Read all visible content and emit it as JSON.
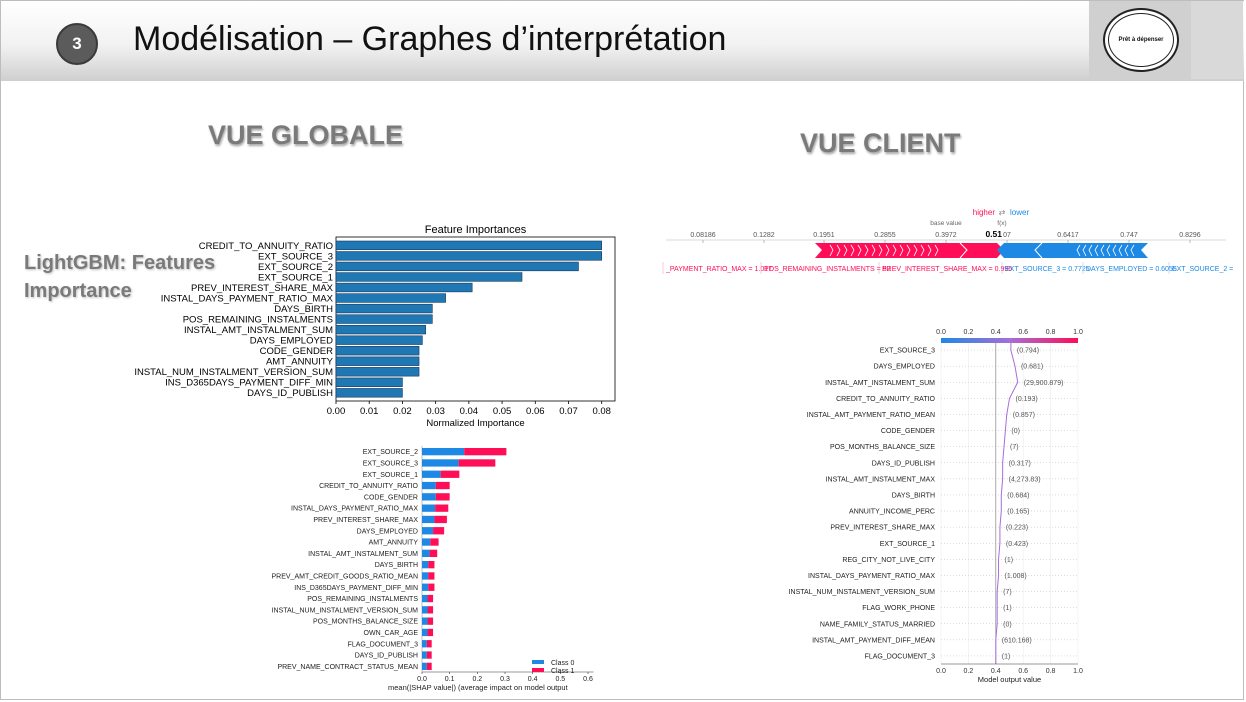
{
  "header": {
    "badge": "3",
    "title": "Modélisation – Graphes d’interprétation",
    "logo_text": "Prêt à dépenser"
  },
  "vue_globale": "VUE GLOBALE",
  "vue_client": "VUE CLIENT",
  "lightgbm_label_line1": "LightGBM: Features",
  "lightgbm_label_line2": "Importance",
  "colors": {
    "bar_blue": "#1f77b4",
    "shap_blue": "#1e88e5",
    "shap_red": "#ff0d57",
    "purple": "#a56fd6"
  },
  "chart_data": [
    {
      "type": "bar",
      "orientation": "horizontal",
      "title": "Feature Importances",
      "xlabel": "Normalized Importance",
      "ylabel": "",
      "categories": [
        "CREDIT_TO_ANNUITY_RATIO",
        "EXT_SOURCE_3",
        "EXT_SOURCE_2",
        "EXT_SOURCE_1",
        "PREV_INTEREST_SHARE_MAX",
        "INSTAL_DAYS_PAYMENT_RATIO_MAX",
        "DAYS_BIRTH",
        "POS_REMAINING_INSTALMENTS",
        "INSTAL_AMT_INSTALMENT_SUM",
        "DAYS_EMPLOYED",
        "CODE_GENDER",
        "AMT_ANNUITY",
        "INSTAL_NUM_INSTALMENT_VERSION_SUM",
        "INS_D365DAYS_PAYMENT_DIFF_MIN",
        "DAYS_ID_PUBLISH"
      ],
      "values": [
        0.08,
        0.08,
        0.073,
        0.056,
        0.041,
        0.033,
        0.029,
        0.029,
        0.027,
        0.026,
        0.025,
        0.025,
        0.025,
        0.02,
        0.02
      ],
      "xticks": [
        "0.00",
        "0.01",
        "0.02",
        "0.03",
        "0.04",
        "0.05",
        "0.06",
        "0.07",
        "0.08"
      ],
      "xlim": [
        0,
        0.084
      ]
    },
    {
      "type": "bar",
      "orientation": "horizontal",
      "stacked": true,
      "title": "",
      "xlabel": "mean(|SHAP value|) (average impact on model output",
      "categories": [
        "EXT_SOURCE_2",
        "EXT_SOURCE_3",
        "EXT_SOURCE_1",
        "CREDIT_TO_ANNUITY_RATIO",
        "CODE_GENDER",
        "INSTAL_DAYS_PAYMENT_RATIO_MAX",
        "PREV_INTEREST_SHARE_MAX",
        "DAYS_EMPLOYED",
        "AMT_ANNUITY",
        "INSTAL_AMT_INSTALMENT_SUM",
        "DAYS_BIRTH",
        "PREV_AMT_CREDIT_GOODS_RATIO_MEAN",
        "INS_D365DAYS_PAYMENT_DIFF_MIN",
        "POS_REMAINING_INSTALMENTS",
        "INSTAL_NUM_INSTALMENT_VERSION_SUM",
        "POS_MONTHS_BALANCE_SIZE",
        "OWN_CAR_AGE",
        "FLAG_DOCUMENT_3",
        "DAYS_ID_PUBLISH",
        "PREV_NAME_CONTRACT_STATUS_MEAN"
      ],
      "series": [
        {
          "name": "Class 0",
          "values": [
            0.305,
            0.265,
            0.135,
            0.1,
            0.1,
            0.095,
            0.09,
            0.08,
            0.06,
            0.055,
            0.045,
            0.045,
            0.045,
            0.04,
            0.04,
            0.04,
            0.04,
            0.035,
            0.035,
            0.035
          ]
        },
        {
          "name": "Class 1",
          "values": [
            0.305,
            0.265,
            0.135,
            0.1,
            0.1,
            0.095,
            0.09,
            0.08,
            0.06,
            0.055,
            0.045,
            0.045,
            0.045,
            0.04,
            0.04,
            0.04,
            0.04,
            0.035,
            0.035,
            0.035
          ]
        }
      ],
      "xticks": [
        "0.0",
        "0.1",
        "0.2",
        "0.3",
        "0.4",
        "0.5",
        "0.6"
      ],
      "xlim": [
        0,
        0.65
      ],
      "legend": "bottom-right"
    },
    {
      "type": "force",
      "legend_higher": "higher",
      "legend_arrows": "⇄",
      "legend_lower": "lower",
      "fx_label": "f(x)",
      "base_label": "base value",
      "base_value": 0.3972,
      "output_value": 0.51,
      "output_value_text": "0.51",
      "ticks": [
        "0.08186",
        "0.1282",
        "0.1951",
        "0.2855",
        "0.3972",
        "0.5107",
        "0.6417",
        "0.747",
        "0.8296"
      ],
      "red_features": [
        "_PAYMENT_RATIO_MAX = 1.017",
        "POS_REMAINING_INSTALMENTS = 52",
        "PREV_INTEREST_SHARE_MAX = 0.996"
      ],
      "blue_features": [
        "EXT_SOURCE_3 = 0.7725",
        "DAYS_EMPLOYED = 0.6055",
        "EXT_SOURCE_2 ="
      ]
    },
    {
      "type": "line",
      "subtype": "decision",
      "xlabel": "Model output value",
      "xticks": [
        "0.0",
        "0.2",
        "0.4",
        "0.6",
        "0.8",
        "1.0"
      ],
      "xlim": [
        0,
        1
      ],
      "base_value": 0.4,
      "features": [
        {
          "name": "EXT_SOURCE_3",
          "value": "(0.794)",
          "x": 0.51
        },
        {
          "name": "DAYS_EMPLOYED",
          "value": "(0.681)",
          "x": 0.54
        },
        {
          "name": "INSTAL_AMT_INSTALMENT_SUM",
          "value": "(29,900.879)",
          "x": 0.56
        },
        {
          "name": "CREDIT_TO_ANNUITY_RATIO",
          "value": "(0.193)",
          "x": 0.5
        },
        {
          "name": "INSTAL_AMT_PAYMENT_RATIO_MEAN",
          "value": "(0.857)",
          "x": 0.48
        },
        {
          "name": "CODE_GENDER",
          "value": "(0)",
          "x": 0.47
        },
        {
          "name": "POS_MONTHS_BALANCE_SIZE",
          "value": "(7)",
          "x": 0.46
        },
        {
          "name": "DAYS_ID_PUBLISH",
          "value": "(0.317)",
          "x": 0.45
        },
        {
          "name": "INSTAL_AMT_INSTALMENT_MAX",
          "value": "(4,273.83)",
          "x": 0.45
        },
        {
          "name": "DAYS_BIRTH",
          "value": "(0.684)",
          "x": 0.44
        },
        {
          "name": "ANNUITY_INCOME_PERC",
          "value": "(0.165)",
          "x": 0.44
        },
        {
          "name": "PREV_INTEREST_SHARE_MAX",
          "value": "(0.223)",
          "x": 0.43
        },
        {
          "name": "EXT_SOURCE_1",
          "value": "(0.423)",
          "x": 0.43
        },
        {
          "name": "REG_CITY_NOT_LIVE_CITY",
          "value": "(1)",
          "x": 0.42
        },
        {
          "name": "INSTAL_DAYS_PAYMENT_RATIO_MAX",
          "value": "(1.008)",
          "x": 0.42
        },
        {
          "name": "INSTAL_NUM_INSTALMENT_VERSION_SUM",
          "value": "(7)",
          "x": 0.41
        },
        {
          "name": "FLAG_WORK_PHONE",
          "value": "(1)",
          "x": 0.41
        },
        {
          "name": "NAME_FAMILY_STATUS_MARRIED",
          "value": "(0)",
          "x": 0.41
        },
        {
          "name": "INSTAL_AMT_PAYMENT_DIFF_MEAN",
          "value": "(610.168)",
          "x": 0.4
        },
        {
          "name": "FLAG_DOCUMENT_3",
          "value": "(1)",
          "x": 0.4
        }
      ]
    }
  ]
}
